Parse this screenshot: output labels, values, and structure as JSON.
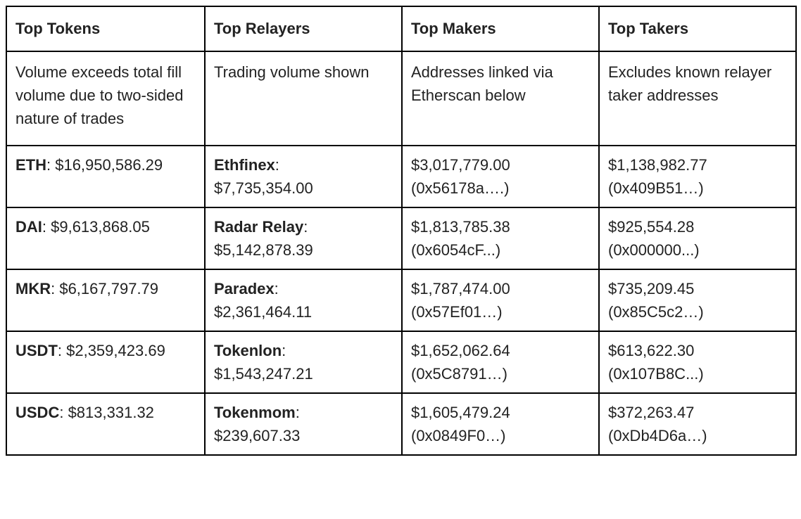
{
  "table": {
    "headers": [
      "Top Tokens",
      "Top Relayers",
      "Top Makers",
      "Top Takers"
    ],
    "notes": [
      "Volume exceeds total fill volume due to two-sided nature of trades",
      "Trading volume shown",
      "Addresses linked via Etherscan below",
      "Excludes known relayer taker addresses"
    ],
    "rows": [
      {
        "token": {
          "name": "ETH",
          "text": ": $16,950,586.29"
        },
        "relayer": {
          "name": "Ethfinex",
          "text": ":",
          "volume": "$7,735,354.00"
        },
        "maker": {
          "volume": "$3,017,779.00",
          "address": "(0x56178a….)"
        },
        "taker": {
          "volume": "$1,138,982.77",
          "address": "(0x409B51…)"
        }
      },
      {
        "token": {
          "name": "DAI",
          "text": ": $9,613,868.05"
        },
        "relayer": {
          "name": "Radar Relay",
          "text": ":",
          "volume": "$5,142,878.39"
        },
        "maker": {
          "volume": "$1,813,785.38",
          "address": "(0x6054cF...)"
        },
        "taker": {
          "volume": "$925,554.28",
          "address": "(0x000000...)"
        }
      },
      {
        "token": {
          "name": "MKR",
          "text": ": $6,167,797.79"
        },
        "relayer": {
          "name": "Paradex",
          "text": ":",
          "volume": "$2,361,464.11"
        },
        "maker": {
          "volume": "$1,787,474.00",
          "address": "(0x57Ef01…)"
        },
        "taker": {
          "volume": "$735,209.45",
          "address": "(0x85C5c2…)"
        }
      },
      {
        "token": {
          "name": "USDT",
          "text": ": $2,359,423.69"
        },
        "relayer": {
          "name": "Tokenlon",
          "text": ":",
          "volume": "$1,543,247.21"
        },
        "maker": {
          "volume": "$1,652,062.64",
          "address": "(0x5C8791…)"
        },
        "taker": {
          "volume": "$613,622.30",
          "address": "(0x107B8C...)"
        }
      },
      {
        "token": {
          "name": "USDC",
          "text": ": $813,331.32"
        },
        "relayer": {
          "name": "Tokenmom",
          "text": ":",
          "volume": "$239,607.33"
        },
        "maker": {
          "volume": "$1,605,479.24",
          "address": "(0x0849F0…)"
        },
        "taker": {
          "volume": "$372,263.47",
          "address": "(0xDb4D6a…)"
        }
      }
    ]
  }
}
